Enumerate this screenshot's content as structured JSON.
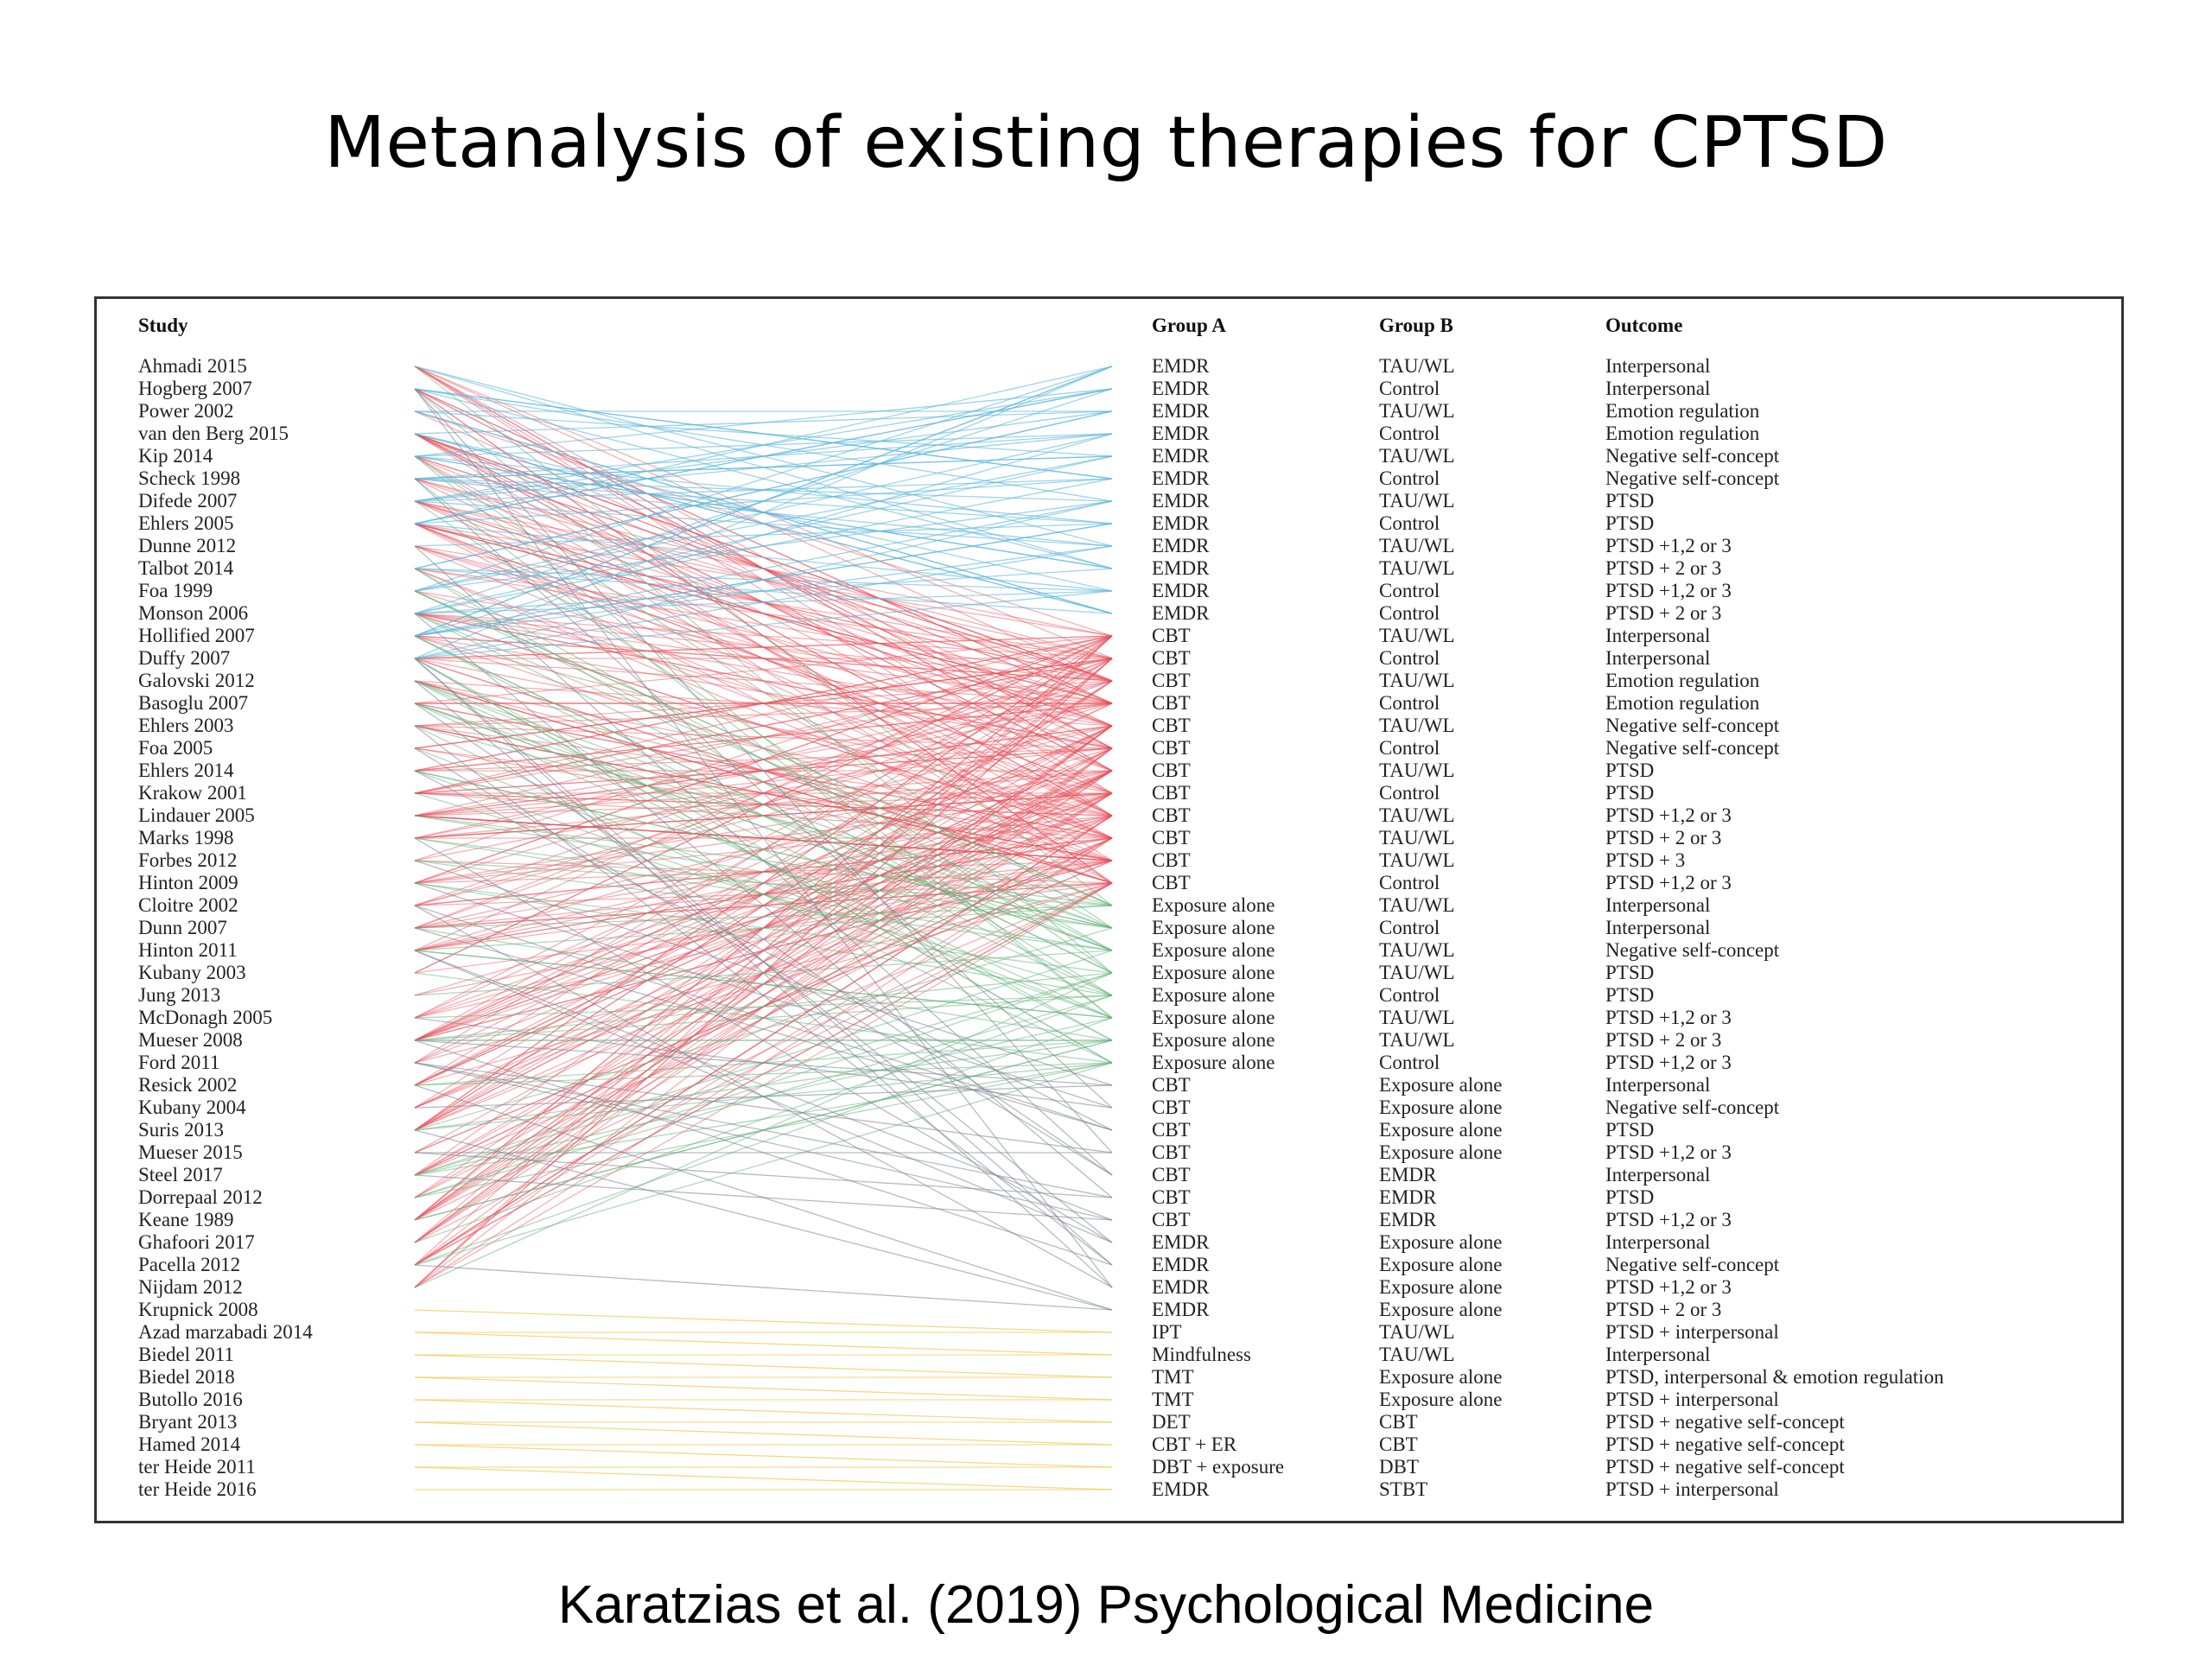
{
  "title": "Metanalysis of existing therapies for CPTSD",
  "citation": "Karatzias et al. (2019) Psychological Medicine",
  "headers": {
    "study": "Study",
    "group_a": "Group A",
    "group_b": "Group B",
    "outcome": "Outcome"
  },
  "colors": {
    "emdr": "#5bb8dc",
    "cbt": "#e8505b",
    "exposure": "#63b27a",
    "cbt_vs": "#7e8290",
    "other": "#f2cf63"
  },
  "studies": [
    "Ahmadi 2015",
    "Hogberg 2007",
    "Power 2002",
    "van den Berg 2015",
    "Kip 2014",
    "Scheck 1998",
    "Difede 2007",
    "Ehlers 2005",
    "Dunne 2012",
    "Talbot 2014",
    "Foa 1999",
    "Monson 2006",
    "Hollified 2007",
    "Duffy 2007",
    "Galovski 2012",
    "Basoglu 2007",
    "Ehlers 2003",
    "Foa 2005",
    "Ehlers 2014",
    "Krakow 2001",
    "Lindauer 2005",
    "Marks 1998",
    "Forbes 2012",
    "Hinton 2009",
    "Cloitre 2002",
    "Dunn 2007",
    "Hinton 2011",
    "Kubany 2003",
    "Jung 2013",
    "McDonagh 2005",
    "Mueser 2008",
    "Ford 2011",
    "Resick 2002",
    "Kubany 2004",
    "Suris 2013",
    "Mueser 2015",
    "Steel 2017",
    "Dorrepaal 2012",
    "Keane 1989",
    "Ghafoori 2017",
    "Pacella 2012",
    "Nijdam 2012",
    "Krupnick 2008",
    "Azad marzabadi 2014",
    "Biedel 2011",
    "Biedel 2018",
    "Butollo 2016",
    "Bryant 2013",
    "Hamed 2014",
    "ter Heide 2011",
    "ter Heide 2016"
  ],
  "comparisons": [
    {
      "a": "EMDR",
      "b": "TAU/WL",
      "outcome": "Interpersonal"
    },
    {
      "a": "EMDR",
      "b": "Control",
      "outcome": "Interpersonal"
    },
    {
      "a": "EMDR",
      "b": "TAU/WL",
      "outcome": "Emotion regulation"
    },
    {
      "a": "EMDR",
      "b": "Control",
      "outcome": "Emotion regulation"
    },
    {
      "a": "EMDR",
      "b": "TAU/WL",
      "outcome": "Negative self-concept"
    },
    {
      "a": "EMDR",
      "b": "Control",
      "outcome": "Negative self-concept"
    },
    {
      "a": "EMDR",
      "b": "TAU/WL",
      "outcome": "PTSD"
    },
    {
      "a": "EMDR",
      "b": "Control",
      "outcome": "PTSD"
    },
    {
      "a": "EMDR",
      "b": "TAU/WL",
      "outcome": "PTSD +1,2 or 3"
    },
    {
      "a": "EMDR",
      "b": "TAU/WL",
      "outcome": "PTSD + 2 or 3"
    },
    {
      "a": "EMDR",
      "b": "Control",
      "outcome": "PTSD +1,2 or 3"
    },
    {
      "a": "EMDR",
      "b": "Control",
      "outcome": "PTSD + 2 or 3"
    },
    {
      "a": "CBT",
      "b": "TAU/WL",
      "outcome": "Interpersonal"
    },
    {
      "a": "CBT",
      "b": "Control",
      "outcome": "Interpersonal"
    },
    {
      "a": "CBT",
      "b": "TAU/WL",
      "outcome": "Emotion regulation"
    },
    {
      "a": "CBT",
      "b": "Control",
      "outcome": "Emotion regulation"
    },
    {
      "a": "CBT",
      "b": "TAU/WL",
      "outcome": "Negative self-concept"
    },
    {
      "a": "CBT",
      "b": "Control",
      "outcome": "Negative self-concept"
    },
    {
      "a": "CBT",
      "b": "TAU/WL",
      "outcome": "PTSD"
    },
    {
      "a": "CBT",
      "b": "Control",
      "outcome": "PTSD"
    },
    {
      "a": "CBT",
      "b": "TAU/WL",
      "outcome": "PTSD +1,2 or 3"
    },
    {
      "a": "CBT",
      "b": "TAU/WL",
      "outcome": "PTSD + 2 or 3"
    },
    {
      "a": "CBT",
      "b": "TAU/WL",
      "outcome": "PTSD + 3"
    },
    {
      "a": "CBT",
      "b": "Control",
      "outcome": "PTSD +1,2 or 3"
    },
    {
      "a": "Exposure alone",
      "b": "TAU/WL",
      "outcome": "Interpersonal"
    },
    {
      "a": "Exposure alone",
      "b": "Control",
      "outcome": "Interpersonal"
    },
    {
      "a": "Exposure alone",
      "b": "TAU/WL",
      "outcome": "Negative self-concept"
    },
    {
      "a": "Exposure alone",
      "b": "TAU/WL",
      "outcome": "PTSD"
    },
    {
      "a": "Exposure alone",
      "b": "Control",
      "outcome": "PTSD"
    },
    {
      "a": "Exposure alone",
      "b": "TAU/WL",
      "outcome": "PTSD +1,2 or 3"
    },
    {
      "a": "Exposure alone",
      "b": "TAU/WL",
      "outcome": "PTSD + 2 or 3"
    },
    {
      "a": "Exposure alone",
      "b": "Control",
      "outcome": "PTSD +1,2 or 3"
    },
    {
      "a": "CBT",
      "b": "Exposure alone",
      "outcome": "Interpersonal"
    },
    {
      "a": "CBT",
      "b": "Exposure alone",
      "outcome": "Negative self-concept"
    },
    {
      "a": "CBT",
      "b": "Exposure alone",
      "outcome": "PTSD"
    },
    {
      "a": "CBT",
      "b": "Exposure alone",
      "outcome": "PTSD +1,2 or 3"
    },
    {
      "a": "CBT",
      "b": "EMDR",
      "outcome": "Interpersonal"
    },
    {
      "a": "CBT",
      "b": "EMDR",
      "outcome": "PTSD"
    },
    {
      "a": "CBT",
      "b": "EMDR",
      "outcome": "PTSD +1,2 or 3"
    },
    {
      "a": "EMDR",
      "b": "Exposure alone",
      "outcome": "Interpersonal"
    },
    {
      "a": "EMDR",
      "b": "Exposure alone",
      "outcome": "Negative self-concept"
    },
    {
      "a": "EMDR",
      "b": "Exposure alone",
      "outcome": "PTSD +1,2 or 3"
    },
    {
      "a": "EMDR",
      "b": "Exposure alone",
      "outcome": "PTSD + 2 or 3"
    },
    {
      "a": "IPT",
      "b": "TAU/WL",
      "outcome": "PTSD + interpersonal"
    },
    {
      "a": "Mindfulness",
      "b": "TAU/WL",
      "outcome": "Interpersonal"
    },
    {
      "a": "TMT",
      "b": "Exposure alone",
      "outcome": "PTSD, interpersonal & emotion regulation"
    },
    {
      "a": "TMT",
      "b": "Exposure alone",
      "outcome": "PTSD + interpersonal"
    },
    {
      "a": "DET",
      "b": "CBT",
      "outcome": "PTSD + negative self-concept"
    },
    {
      "a": "CBT + ER",
      "b": "CBT",
      "outcome": "PTSD + negative self-concept"
    },
    {
      "a": "DBT + exposure",
      "b": "DBT",
      "outcome": "PTSD + negative self-concept"
    },
    {
      "a": "EMDR",
      "b": "STBT",
      "outcome": "PTSD + interpersonal"
    }
  ]
}
